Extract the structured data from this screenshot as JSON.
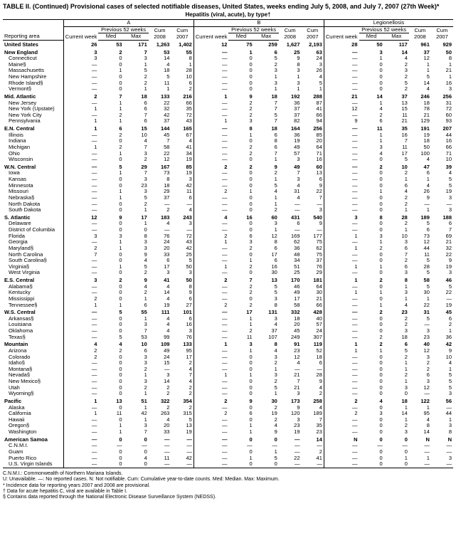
{
  "title": "TABLE II. (Continued) Provisional cases of selected notifiable diseases, United States, weeks ending July 5, 2008, and July 7, 2007 (27th Week)*",
  "subtitle_left": "Hepatitis (viral, acute), by type†",
  "groupA": "A",
  "groupB": "B",
  "groupC": "Legionellosis",
  "col_area": "Reporting area",
  "col_current": "Current week",
  "col_prev": "Previous 52 weeks",
  "col_med": "Med",
  "col_max": "Max",
  "col_cum": "Cum",
  "col_2008": "2008",
  "col_2007": "2007",
  "rows": [
    {
      "t": "r",
      "l": "United States",
      "a": [
        "26",
        "53",
        "171",
        "1,263",
        "1,402",
        "12",
        "75",
        "259",
        "1,627",
        "2,193",
        "28",
        "50",
        "117",
        "961",
        "929"
      ]
    },
    {
      "t": "r",
      "l": "New England",
      "a": [
        "3",
        "2",
        "7",
        "53",
        "55",
        "—",
        "1",
        "6",
        "25",
        "63",
        "—",
        "3",
        "14",
        "37",
        "50"
      ]
    },
    {
      "t": "s",
      "l": "Connecticut",
      "a": [
        "3",
        "0",
        "3",
        "14",
        "8",
        "—",
        "0",
        "5",
        "9",
        "24",
        "—",
        "1",
        "4",
        "12",
        "8"
      ]
    },
    {
      "t": "s",
      "l": "Maine§",
      "a": [
        "—",
        "0",
        "1",
        "4",
        "1",
        "—",
        "0",
        "2",
        "8",
        "3",
        "—",
        "0",
        "2",
        "1",
        "1"
      ]
    },
    {
      "t": "s",
      "l": "Massachusetts",
      "a": [
        "—",
        "1",
        "5",
        "18",
        "28",
        "—",
        "0",
        "3",
        "3",
        "26",
        "—",
        "0",
        "3",
        "1",
        "21"
      ]
    },
    {
      "t": "s",
      "l": "New Hampshire",
      "a": [
        "—",
        "0",
        "2",
        "5",
        "10",
        "—",
        "0",
        "1",
        "1",
        "4",
        "—",
        "0",
        "2",
        "5",
        "1"
      ]
    },
    {
      "t": "s",
      "l": "Rhode Island§",
      "a": [
        "—",
        "0",
        "2",
        "11",
        "6",
        "—",
        "0",
        "3",
        "3",
        "5",
        "—",
        "0",
        "5",
        "14",
        "16"
      ]
    },
    {
      "t": "s",
      "l": "Vermont§",
      "a": [
        "—",
        "0",
        "1",
        "1",
        "2",
        "—",
        "0",
        "1",
        "1",
        "1",
        "—",
        "0",
        "2",
        "4",
        "3"
      ]
    },
    {
      "t": "r",
      "l": "Mid. Atlantic",
      "a": [
        "2",
        "7",
        "18",
        "133",
        "216",
        "1",
        "9",
        "18",
        "192",
        "288",
        "21",
        "14",
        "37",
        "246",
        "256"
      ]
    },
    {
      "t": "s",
      "l": "New Jersey",
      "a": [
        "—",
        "1",
        "6",
        "22",
        "66",
        "—",
        "2",
        "7",
        "36",
        "87",
        "—",
        "1",
        "13",
        "18",
        "31"
      ]
    },
    {
      "t": "s",
      "l": "New York (Upstate)",
      "a": [
        "1",
        "1",
        "6",
        "32",
        "35",
        "—",
        "2",
        "7",
        "37",
        "41",
        "12",
        "4",
        "15",
        "78",
        "72"
      ]
    },
    {
      "t": "s",
      "l": "New York City",
      "a": [
        "—",
        "2",
        "7",
        "42",
        "72",
        "—",
        "2",
        "5",
        "37",
        "66",
        "—",
        "2",
        "11",
        "21",
        "60"
      ]
    },
    {
      "t": "s",
      "l": "Pennsylvania",
      "a": [
        "1",
        "1",
        "6",
        "37",
        "43",
        "1",
        "3",
        "7",
        "82",
        "94",
        "9",
        "6",
        "21",
        "129",
        "93"
      ]
    },
    {
      "t": "r",
      "l": "E.N. Central",
      "a": [
        "1",
        "6",
        "15",
        "144",
        "165",
        "—",
        "8",
        "18",
        "164",
        "256",
        "—",
        "11",
        "35",
        "191",
        "207"
      ]
    },
    {
      "t": "s",
      "l": "Illinois",
      "a": [
        "—",
        "2",
        "10",
        "45",
        "67",
        "—",
        "1",
        "6",
        "36",
        "85",
        "—",
        "1",
        "16",
        "19",
        "44"
      ]
    },
    {
      "t": "s",
      "l": "Indiana",
      "a": [
        "—",
        "0",
        "4",
        "7",
        "4",
        "—",
        "0",
        "8",
        "19",
        "20",
        "—",
        "1",
        "7",
        "18",
        "16"
      ]
    },
    {
      "t": "s",
      "l": "Michigan",
      "a": [
        "1",
        "2",
        "7",
        "58",
        "41",
        "—",
        "2",
        "6",
        "49",
        "64",
        "—",
        "3",
        "11",
        "50",
        "66"
      ]
    },
    {
      "t": "s",
      "l": "Ohio",
      "a": [
        "—",
        "1",
        "3",
        "22",
        "34",
        "—",
        "2",
        "7",
        "57",
        "71",
        "—",
        "4",
        "17",
        "100",
        "71"
      ]
    },
    {
      "t": "s",
      "l": "Wisconsin",
      "a": [
        "—",
        "0",
        "2",
        "12",
        "19",
        "—",
        "0",
        "1",
        "3",
        "16",
        "—",
        "0",
        "5",
        "4",
        "10"
      ]
    },
    {
      "t": "r",
      "l": "W.N. Central",
      "a": [
        "—",
        "5",
        "29",
        "167",
        "85",
        "2",
        "2",
        "9",
        "49",
        "60",
        "—",
        "2",
        "10",
        "47",
        "39"
      ]
    },
    {
      "t": "s",
      "l": "Iowa",
      "a": [
        "—",
        "1",
        "7",
        "73",
        "19",
        "—",
        "0",
        "2",
        "7",
        "13",
        "—",
        "0",
        "2",
        "6",
        "4"
      ]
    },
    {
      "t": "s",
      "l": "Kansas",
      "a": [
        "—",
        "0",
        "3",
        "8",
        "3",
        "—",
        "0",
        "1",
        "3",
        "6",
        "—",
        "0",
        "1",
        "1",
        "5"
      ]
    },
    {
      "t": "s",
      "l": "Minnesota",
      "a": [
        "—",
        "0",
        "23",
        "18",
        "42",
        "—",
        "0",
        "5",
        "4",
        "9",
        "—",
        "0",
        "6",
        "4",
        "5"
      ]
    },
    {
      "t": "s",
      "l": "Missouri",
      "a": [
        "—",
        "1",
        "3",
        "29",
        "11",
        "2",
        "1",
        "4",
        "31",
        "22",
        "—",
        "1",
        "4",
        "26",
        "19"
      ]
    },
    {
      "t": "s",
      "l": "Nebraska§",
      "a": [
        "—",
        "1",
        "5",
        "37",
        "6",
        "—",
        "0",
        "1",
        "4",
        "7",
        "—",
        "0",
        "2",
        "9",
        "3"
      ]
    },
    {
      "t": "s",
      "l": "North Dakota",
      "a": [
        "—",
        "0",
        "2",
        "—",
        "—",
        "—",
        "0",
        "1",
        "—",
        "—",
        "—",
        "0",
        "2",
        "—",
        "—"
      ]
    },
    {
      "t": "s",
      "l": "South Dakota",
      "a": [
        "—",
        "0",
        "1",
        "2",
        "4",
        "—",
        "0",
        "2",
        "—",
        "3",
        "—",
        "0",
        "1",
        "1",
        "3"
      ]
    },
    {
      "t": "r",
      "l": "S. Atlantic",
      "a": [
        "12",
        "9",
        "17",
        "183",
        "243",
        "4",
        "16",
        "60",
        "431",
        "540",
        "3",
        "8",
        "28",
        "189",
        "188"
      ]
    },
    {
      "t": "s",
      "l": "Delaware",
      "a": [
        "—",
        "0",
        "1",
        "4",
        "3",
        "—",
        "0",
        "3",
        "6",
        "9",
        "—",
        "0",
        "2",
        "5",
        "6"
      ]
    },
    {
      "t": "s",
      "l": "District of Columbia",
      "a": [
        "—",
        "0",
        "0",
        "—",
        "—",
        "—",
        "0",
        "1",
        "—",
        "—",
        "—",
        "0",
        "1",
        "6",
        "7"
      ]
    },
    {
      "t": "s",
      "l": "Florida",
      "a": [
        "3",
        "3",
        "8",
        "76",
        "72",
        "2",
        "6",
        "12",
        "169",
        "177",
        "1",
        "3",
        "10",
        "73",
        "69"
      ]
    },
    {
      "t": "s",
      "l": "Georgia",
      "a": [
        "—",
        "1",
        "3",
        "24",
        "43",
        "1",
        "3",
        "8",
        "62",
        "75",
        "—",
        "1",
        "3",
        "12",
        "21"
      ]
    },
    {
      "t": "s",
      "l": "Maryland§",
      "a": [
        "2",
        "1",
        "3",
        "20",
        "42",
        "—",
        "2",
        "6",
        "36",
        "62",
        "1",
        "2",
        "6",
        "44",
        "32"
      ]
    },
    {
      "t": "s",
      "l": "North Carolina",
      "a": [
        "7",
        "0",
        "9",
        "33",
        "25",
        "—",
        "0",
        "17",
        "48",
        "75",
        "—",
        "0",
        "7",
        "11",
        "22"
      ]
    },
    {
      "t": "s",
      "l": "South Carolina§",
      "a": [
        "—",
        "0",
        "4",
        "6",
        "5",
        "—",
        "1",
        "6",
        "34",
        "37",
        "—",
        "0",
        "2",
        "5",
        "9"
      ]
    },
    {
      "t": "s",
      "l": "Virginia§",
      "a": [
        "—",
        "1",
        "5",
        "17",
        "50",
        "1",
        "2",
        "16",
        "51",
        "76",
        "1",
        "1",
        "6",
        "28",
        "19"
      ]
    },
    {
      "t": "s",
      "l": "West Virginia",
      "a": [
        "—",
        "0",
        "2",
        "3",
        "3",
        "—",
        "0",
        "30",
        "25",
        "29",
        "—",
        "0",
        "3",
        "5",
        "3"
      ]
    },
    {
      "t": "r",
      "l": "E.S. Central",
      "a": [
        "3",
        "2",
        "9",
        "41",
        "50",
        "2",
        "7",
        "13",
        "170",
        "181",
        "1",
        "2",
        "8",
        "58",
        "46"
      ]
    },
    {
      "t": "s",
      "l": "Alabama§",
      "a": [
        "—",
        "0",
        "4",
        "4",
        "8",
        "—",
        "2",
        "5",
        "46",
        "64",
        "—",
        "0",
        "1",
        "5",
        "5"
      ]
    },
    {
      "t": "s",
      "l": "Kentucky",
      "a": [
        "—",
        "0",
        "2",
        "14",
        "9",
        "—",
        "2",
        "5",
        "49",
        "30",
        "1",
        "1",
        "3",
        "30",
        "22"
      ]
    },
    {
      "t": "s",
      "l": "Mississippi",
      "a": [
        "2",
        "0",
        "1",
        "4",
        "6",
        "—",
        "0",
        "3",
        "17",
        "21",
        "—",
        "0",
        "1",
        "1",
        "—"
      ]
    },
    {
      "t": "s",
      "l": "Tennessee§",
      "a": [
        "1",
        "1",
        "6",
        "19",
        "27",
        "2",
        "2",
        "8",
        "58",
        "66",
        "—",
        "1",
        "4",
        "22",
        "19"
      ]
    },
    {
      "t": "r",
      "l": "W.S. Central",
      "a": [
        "—",
        "5",
        "55",
        "111",
        "101",
        "—",
        "17",
        "131",
        "332",
        "428",
        "—",
        "2",
        "23",
        "31",
        "45"
      ]
    },
    {
      "t": "s",
      "l": "Arkansas§",
      "a": [
        "—",
        "0",
        "1",
        "4",
        "6",
        "—",
        "1",
        "3",
        "18",
        "40",
        "—",
        "0",
        "2",
        "5",
        "6"
      ]
    },
    {
      "t": "s",
      "l": "Louisiana",
      "a": [
        "—",
        "0",
        "3",
        "4",
        "16",
        "—",
        "1",
        "4",
        "20",
        "57",
        "—",
        "0",
        "2",
        "—",
        "2"
      ]
    },
    {
      "t": "s",
      "l": "Oklahoma",
      "a": [
        "—",
        "0",
        "7",
        "4",
        "3",
        "—",
        "2",
        "37",
        "45",
        "24",
        "—",
        "0",
        "3",
        "3",
        "1"
      ]
    },
    {
      "t": "s",
      "l": "Texas§",
      "a": [
        "—",
        "5",
        "53",
        "99",
        "76",
        "—",
        "11",
        "107",
        "249",
        "307",
        "—",
        "2",
        "18",
        "23",
        "36"
      ]
    },
    {
      "t": "r",
      "l": "Mountain",
      "a": [
        "4",
        "4",
        "10",
        "109",
        "133",
        "1",
        "3",
        "8",
        "91",
        "119",
        "1",
        "2",
        "6",
        "40",
        "42"
      ]
    },
    {
      "t": "s",
      "l": "Arizona",
      "a": [
        "2",
        "2",
        "6",
        "49",
        "95",
        "—",
        "1",
        "4",
        "23",
        "52",
        "1",
        "1",
        "5",
        "12",
        "9"
      ]
    },
    {
      "t": "s",
      "l": "Colorado",
      "a": [
        "2",
        "0",
        "3",
        "24",
        "17",
        "—",
        "0",
        "3",
        "12",
        "18",
        "—",
        "0",
        "2",
        "3",
        "10"
      ]
    },
    {
      "t": "s",
      "l": "Idaho§",
      "a": [
        "—",
        "0",
        "3",
        "15",
        "2",
        "—",
        "0",
        "2",
        "4",
        "6",
        "—",
        "0",
        "1",
        "2",
        "4"
      ]
    },
    {
      "t": "s",
      "l": "Montana§",
      "a": [
        "—",
        "0",
        "2",
        "—",
        "4",
        "—",
        "0",
        "1",
        "—",
        "—",
        "—",
        "0",
        "1",
        "2",
        "1"
      ]
    },
    {
      "t": "s",
      "l": "Nevada§",
      "a": [
        "—",
        "0",
        "1",
        "3",
        "7",
        "1",
        "1",
        "3",
        "21",
        "28",
        "—",
        "0",
        "2",
        "6",
        "5"
      ]
    },
    {
      "t": "s",
      "l": "New Mexico§",
      "a": [
        "—",
        "0",
        "3",
        "14",
        "4",
        "—",
        "0",
        "2",
        "7",
        "9",
        "—",
        "0",
        "1",
        "3",
        "5"
      ]
    },
    {
      "t": "s",
      "l": "Utah",
      "a": [
        "—",
        "0",
        "2",
        "2",
        "2",
        "—",
        "0",
        "5",
        "21",
        "4",
        "—",
        "0",
        "3",
        "12",
        "5"
      ]
    },
    {
      "t": "s",
      "l": "Wyoming§",
      "a": [
        "—",
        "0",
        "1",
        "2",
        "2",
        "—",
        "0",
        "1",
        "3",
        "2",
        "—",
        "0",
        "0",
        "—",
        "3"
      ]
    },
    {
      "t": "r",
      "l": "Pacific",
      "a": [
        "1",
        "13",
        "51",
        "322",
        "354",
        "2",
        "9",
        "30",
        "173",
        "258",
        "2",
        "4",
        "18",
        "122",
        "56"
      ]
    },
    {
      "t": "s",
      "l": "Alaska",
      "a": [
        "—",
        "0",
        "1",
        "2",
        "2",
        "—",
        "0",
        "2",
        "9",
        "4",
        "—",
        "0",
        "1",
        "1",
        "—"
      ]
    },
    {
      "t": "s",
      "l": "California",
      "a": [
        "1",
        "11",
        "42",
        "263",
        "315",
        "2",
        "6",
        "19",
        "120",
        "189",
        "2",
        "3",
        "14",
        "95",
        "44"
      ]
    },
    {
      "t": "s",
      "l": "Hawaii",
      "a": [
        "—",
        "0",
        "1",
        "4",
        "5",
        "—",
        "0",
        "2",
        "3",
        "7",
        "—",
        "0",
        "1",
        "4",
        "1"
      ]
    },
    {
      "t": "s",
      "l": "Oregon§",
      "a": [
        "—",
        "1",
        "3",
        "20",
        "13",
        "—",
        "1",
        "4",
        "23",
        "35",
        "—",
        "0",
        "2",
        "8",
        "3"
      ]
    },
    {
      "t": "s",
      "l": "Washington",
      "a": [
        "—",
        "1",
        "7",
        "33",
        "19",
        "—",
        "1",
        "9",
        "19",
        "23",
        "—",
        "0",
        "3",
        "14",
        "8"
      ]
    },
    {
      "t": "r",
      "l": "American Samoa",
      "a": [
        "—",
        "0",
        "0",
        "—",
        "—",
        "—",
        "0",
        "0",
        "—",
        "14",
        "N",
        "0",
        "0",
        "N",
        "N"
      ]
    },
    {
      "t": "s",
      "l": "C.N.M.I.",
      "a": [
        "—",
        "—",
        "—",
        "—",
        "—",
        "—",
        "—",
        "—",
        "—",
        "—",
        "—",
        "—",
        "—",
        "—",
        "—"
      ]
    },
    {
      "t": "s",
      "l": "Guam",
      "a": [
        "—",
        "0",
        "0",
        "—",
        "—",
        "—",
        "0",
        "1",
        "—",
        "2",
        "—",
        "0",
        "0",
        "—",
        "—"
      ]
    },
    {
      "t": "s",
      "l": "Puerto Rico",
      "a": [
        "—",
        "0",
        "4",
        "11",
        "42",
        "—",
        "1",
        "5",
        "22",
        "41",
        "—",
        "0",
        "1",
        "1",
        "3"
      ]
    },
    {
      "t": "s",
      "l": "U.S. Virgin Islands",
      "a": [
        "—",
        "0",
        "0",
        "—",
        "—",
        "—",
        "0",
        "0",
        "—",
        "—",
        "—",
        "0",
        "0",
        "—",
        "—"
      ]
    }
  ],
  "footnotes": [
    "C.N.M.I.: Commonwealth of Northern Mariana Islands.",
    "U: Unavailable.   —: No reported cases.   N: Not notifiable.   Cum: Cumulative year-to-date counts.   Med: Median.   Max: Maximum.",
    "* Incidence data for reporting years 2007 and 2008 are provisional.",
    "† Data for acute hepatitis C, viral are available in Table I.",
    "§ Contains data reported through the National Electronic Disease Surveillance System (NEDSS)."
  ]
}
